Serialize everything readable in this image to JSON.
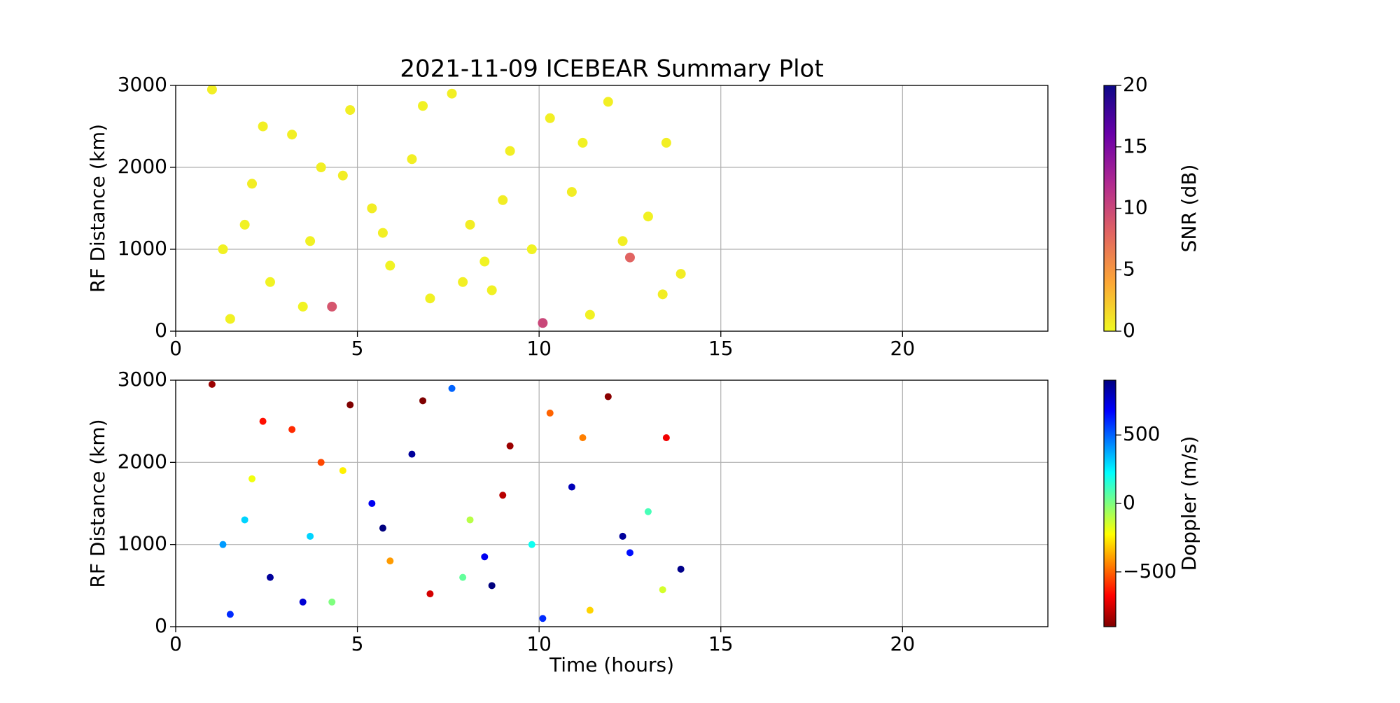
{
  "chart_data": [
    {
      "type": "scatter",
      "title": "2021-11-09 ICEBEAR Summary Plot",
      "ylabel": "RF Distance (km)",
      "clabel": "SNR (dB)",
      "x": [
        1.0,
        1.5,
        2.1,
        2.6,
        3.2,
        3.7,
        4.3,
        4.8,
        5.4,
        5.9,
        6.5,
        7.0,
        7.6,
        8.1,
        8.7,
        9.2,
        9.8,
        10.3,
        10.9,
        11.4,
        11.9,
        12.5,
        13.0,
        13.5,
        13.9,
        1.3,
        2.4,
        3.5,
        4.6,
        5.7,
        6.8,
        7.9,
        9.0,
        10.1,
        11.2,
        12.3,
        13.4,
        1.9,
        4.0,
        8.5
      ],
      "values": [
        2950,
        150,
        1800,
        600,
        2400,
        1100,
        300,
        2700,
        1500,
        800,
        2100,
        400,
        2900,
        1300,
        500,
        2200,
        1000,
        2600,
        1700,
        200,
        2800,
        900,
        1400,
        2300,
        700,
        1000,
        2500,
        300,
        1900,
        1200,
        2750,
        600,
        1600,
        100,
        2300,
        1100,
        450,
        1300,
        2000,
        850
      ],
      "color_values": [
        0.5,
        0.4,
        0.6,
        0.3,
        0.5,
        0.4,
        9,
        0.5,
        0.6,
        0.3,
        0.5,
        0.4,
        0.5,
        0.6,
        0.4,
        0.5,
        0.3,
        0.5,
        0.6,
        0.4,
        0.5,
        8,
        0.4,
        0.5,
        0.6,
        0.4,
        0.5,
        0.3,
        0.6,
        0.5,
        0.4,
        0.5,
        0.6,
        10,
        0.4,
        0.5,
        0.6,
        0.4,
        0.5,
        0.3
      ],
      "colormap": [
        "#f0f921",
        "#fca636",
        "#e16462",
        "#b12a90",
        "#6a00a8",
        "#0d0887"
      ],
      "clim": [
        0,
        20
      ],
      "cticks": [
        0,
        5,
        10,
        15,
        20
      ],
      "xlim": [
        0,
        24
      ],
      "xticks": [
        0,
        5,
        10,
        15,
        20
      ],
      "ylim": [
        0,
        3000
      ],
      "yticks": [
        0,
        1000,
        2000,
        3000
      ],
      "grid": true
    },
    {
      "type": "scatter",
      "xlabel": "Time (hours)",
      "ylabel": "RF Distance (km)",
      "clabel": "Doppler (m/s)",
      "x": [
        1.0,
        1.5,
        2.1,
        2.6,
        3.2,
        3.7,
        4.3,
        4.8,
        5.4,
        5.9,
        6.5,
        7.0,
        7.6,
        8.1,
        8.7,
        9.2,
        9.8,
        10.3,
        10.9,
        11.4,
        11.9,
        12.5,
        13.0,
        13.5,
        13.9,
        1.3,
        2.4,
        3.5,
        4.6,
        5.7,
        6.8,
        7.9,
        9.0,
        10.1,
        11.2,
        12.3,
        13.4,
        1.9,
        4.0,
        8.5
      ],
      "values": [
        2950,
        150,
        1800,
        600,
        2400,
        1100,
        300,
        2700,
        1500,
        800,
        2100,
        400,
        2900,
        1300,
        500,
        2200,
        1000,
        2600,
        1700,
        200,
        2800,
        900,
        1400,
        2300,
        700,
        1000,
        2500,
        300,
        1900,
        1200,
        2750,
        600,
        1600,
        100,
        2300,
        1100,
        450,
        1300,
        2000,
        850
      ],
      "color_values": [
        -850,
        600,
        -200,
        850,
        -600,
        300,
        0,
        -900,
        700,
        -400,
        850,
        -750,
        500,
        -100,
        900,
        -850,
        200,
        -500,
        800,
        -300,
        -880,
        650,
        100,
        -700,
        880,
        400,
        -650,
        750,
        -250,
        900,
        -900,
        50,
        -800,
        600,
        -450,
        850,
        -150,
        300,
        -550,
        700
      ],
      "colormap": [
        "#7f0000",
        "#ff0000",
        "#ff7f00",
        "#ffff00",
        "#7fff7f",
        "#00ffff",
        "#007fff",
        "#0000ff",
        "#00007f"
      ],
      "clim": [
        -900,
        900
      ],
      "cticks": [
        {
          "value": -500,
          "label": "−500"
        },
        0,
        500
      ],
      "xlim": [
        0,
        24
      ],
      "xticks": [
        0,
        5,
        10,
        15,
        20
      ],
      "ylim": [
        0,
        3000
      ],
      "yticks": [
        0,
        1000,
        2000,
        3000
      ],
      "grid": true
    }
  ]
}
